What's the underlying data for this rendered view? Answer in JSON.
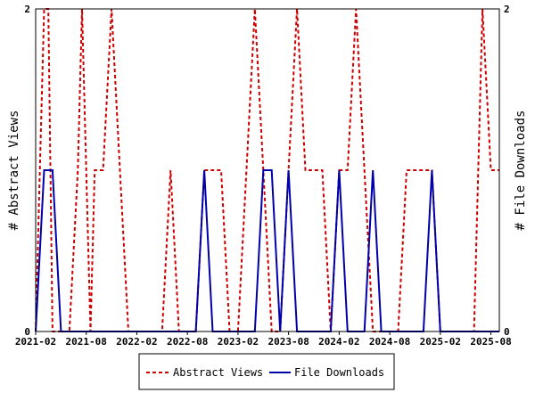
{
  "chart_data": {
    "type": "line",
    "title": "",
    "ylabel_left": "# Abstract Views",
    "ylabel_right": "# File Downloads",
    "ylim_left": [
      0,
      2
    ],
    "ylim_right": [
      0,
      2
    ],
    "y_ticks_left": [
      "0",
      "2"
    ],
    "y_ticks_right": [
      "0",
      "2"
    ],
    "x_tick_labels": [
      "2021-02",
      "2021-08",
      "2022-02",
      "2022-08",
      "2023-02",
      "2023-08",
      "2024-02",
      "2024-08",
      "2025-02",
      "2025-08"
    ],
    "x_tick_months": [
      0,
      6,
      12,
      18,
      24,
      30,
      36,
      42,
      48,
      54
    ],
    "x_start": "2021-02",
    "x_end": "2025-08",
    "legend_placement": "bottom-center",
    "grid": false,
    "series": [
      {
        "name": "Abstract Views",
        "color": "#cc0000",
        "style": "dashed",
        "points": [
          [
            0,
            0
          ],
          [
            0.5,
            1
          ],
          [
            1,
            2
          ],
          [
            1.5,
            2
          ],
          [
            2,
            0
          ],
          [
            2.5,
            0
          ],
          [
            3,
            0
          ],
          [
            4,
            0
          ],
          [
            5,
            1
          ],
          [
            5.5,
            2
          ],
          [
            6,
            1
          ],
          [
            6.5,
            0
          ],
          [
            7,
            1
          ],
          [
            7.5,
            1
          ],
          [
            8,
            1
          ],
          [
            9,
            2
          ],
          [
            10,
            1
          ],
          [
            11,
            0
          ],
          [
            12,
            0
          ],
          [
            13,
            0
          ],
          [
            14,
            0
          ],
          [
            15,
            0
          ],
          [
            16,
            1
          ],
          [
            17,
            0
          ],
          [
            18,
            0
          ],
          [
            19,
            0
          ],
          [
            20,
            1
          ],
          [
            21,
            1
          ],
          [
            22,
            1
          ],
          [
            23,
            0
          ],
          [
            24,
            0
          ],
          [
            25,
            1
          ],
          [
            26,
            2
          ],
          [
            27,
            1
          ],
          [
            28,
            0
          ],
          [
            29,
            0
          ],
          [
            30,
            1
          ],
          [
            31,
            2
          ],
          [
            32,
            1
          ],
          [
            33,
            1
          ],
          [
            34,
            1
          ],
          [
            35,
            0
          ],
          [
            36,
            1
          ],
          [
            37,
            1
          ],
          [
            38,
            2
          ],
          [
            39,
            1
          ],
          [
            40,
            0
          ],
          [
            41,
            0
          ],
          [
            42,
            0
          ],
          [
            43,
            0
          ],
          [
            44,
            1
          ],
          [
            45,
            1
          ],
          [
            46,
            1
          ],
          [
            47,
            1
          ],
          [
            48,
            0
          ],
          [
            49,
            0
          ],
          [
            50,
            0
          ],
          [
            51,
            0
          ],
          [
            52,
            0
          ],
          [
            53,
            2
          ],
          [
            54,
            1
          ],
          [
            55,
            1
          ]
        ]
      },
      {
        "name": "File Downloads",
        "color": "#0000aa",
        "style": "solid",
        "points": [
          [
            0,
            0
          ],
          [
            1,
            1
          ],
          [
            1.5,
            1
          ],
          [
            2,
            1
          ],
          [
            3,
            0
          ],
          [
            4,
            0
          ],
          [
            5,
            0
          ],
          [
            6,
            0
          ],
          [
            7,
            0
          ],
          [
            8,
            0
          ],
          [
            9,
            0
          ],
          [
            10,
            0
          ],
          [
            11,
            0
          ],
          [
            12,
            0
          ],
          [
            13,
            0
          ],
          [
            14,
            0
          ],
          [
            15,
            0
          ],
          [
            16,
            0
          ],
          [
            17,
            0
          ],
          [
            18,
            0
          ],
          [
            19,
            0
          ],
          [
            20,
            1
          ],
          [
            21,
            0
          ],
          [
            22,
            0
          ],
          [
            23,
            0
          ],
          [
            24,
            0
          ],
          [
            25,
            0
          ],
          [
            26,
            0
          ],
          [
            27,
            1
          ],
          [
            28,
            1
          ],
          [
            29,
            0
          ],
          [
            30,
            1
          ],
          [
            31,
            0
          ],
          [
            32,
            0
          ],
          [
            33,
            0
          ],
          [
            34,
            0
          ],
          [
            35,
            0
          ],
          [
            36,
            1
          ],
          [
            37,
            0
          ],
          [
            38,
            0
          ],
          [
            39,
            0
          ],
          [
            40,
            1
          ],
          [
            41,
            0
          ],
          [
            42,
            0
          ],
          [
            43,
            0
          ],
          [
            44,
            0
          ],
          [
            45,
            0
          ],
          [
            46,
            0
          ],
          [
            47,
            1
          ],
          [
            48,
            0
          ],
          [
            49,
            0
          ],
          [
            50,
            0
          ],
          [
            51,
            0
          ],
          [
            52,
            0
          ],
          [
            53,
            0
          ],
          [
            54,
            0
          ],
          [
            55,
            0
          ]
        ]
      }
    ]
  }
}
